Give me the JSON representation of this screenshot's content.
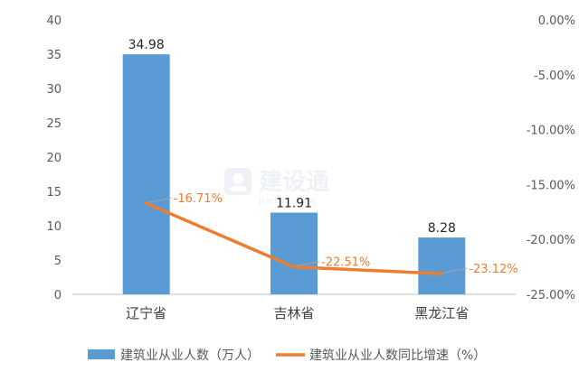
{
  "chart_data": {
    "type": "bar+line",
    "categories": [
      "辽宁省",
      "吉林省",
      "黑龙江省"
    ],
    "series": [
      {
        "name": "建筑业从业人数（万人）",
        "type": "bar",
        "axis": "left",
        "values": [
          34.98,
          11.91,
          8.28
        ],
        "data_labels": [
          "34.98",
          "11.91",
          "8.28"
        ],
        "color": "#5B9BD5"
      },
      {
        "name": "建筑业从业人数同比增速（%）",
        "type": "line",
        "axis": "right",
        "values": [
          -16.71,
          -22.51,
          -23.12
        ],
        "data_labels": [
          "-16.71%",
          "-22.51%",
          "-23.12%"
        ],
        "color": "#ED7D31"
      }
    ],
    "y_left": {
      "ylim": [
        0,
        40
      ],
      "ticks": [
        0,
        5,
        10,
        15,
        20,
        25,
        30,
        35,
        40
      ]
    },
    "y_right": {
      "ylim": [
        -25,
        0
      ],
      "ticks": [
        "0.00%",
        "-5.00%",
        "-10.00%",
        "-15.00%",
        "-20.00%",
        "-25.00%"
      ],
      "tick_values": [
        0,
        -5,
        -10,
        -15,
        -20,
        -25
      ]
    },
    "grid": false,
    "legend": "bottom-center",
    "watermark": {
      "text": "建设通",
      "subtext": "jianshetong"
    },
    "colors": {
      "axis": "#bfbfbf",
      "text": "#595959",
      "leader": "#a6a6a6"
    }
  }
}
